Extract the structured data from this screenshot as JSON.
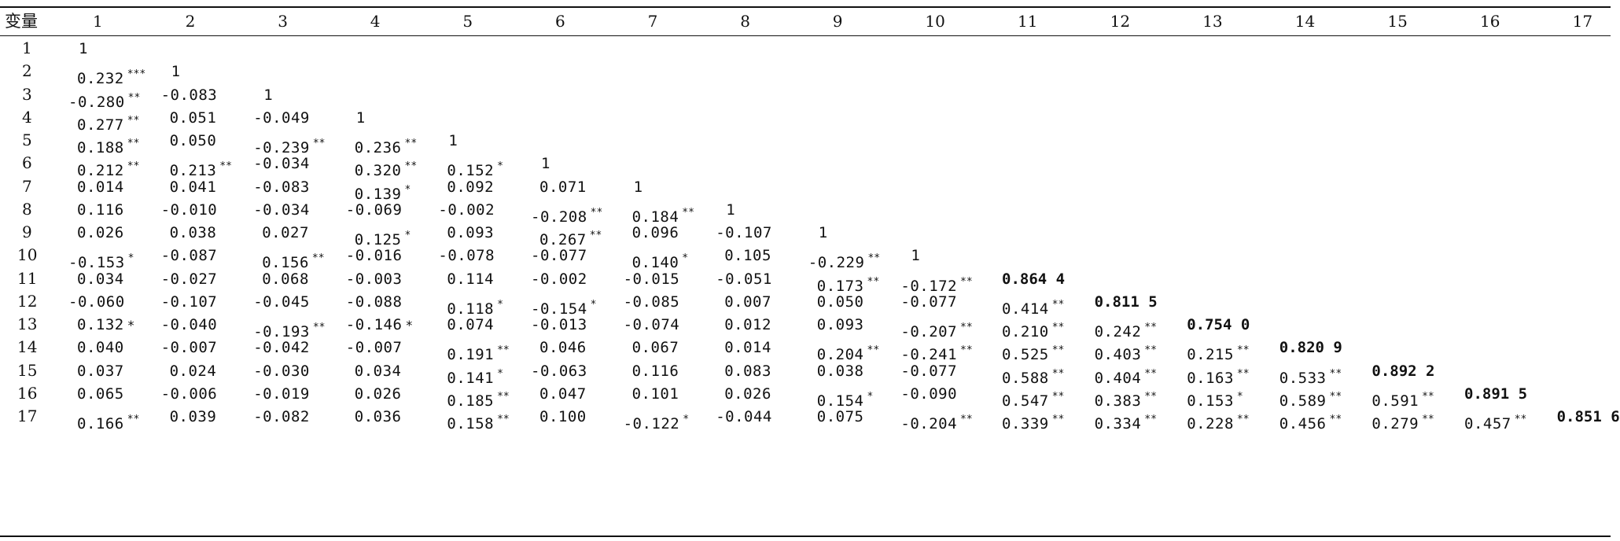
{
  "table": {
    "corner_label": "变量",
    "columns": [
      "1",
      "2",
      "3",
      "4",
      "5",
      "6",
      "7",
      "8",
      "9",
      "10",
      "11",
      "12",
      "13",
      "14",
      "15",
      "16",
      "17"
    ],
    "rows": [
      {
        "label": "1",
        "cells": [
          {
            "v": "1",
            "s": ""
          }
        ]
      },
      {
        "label": "2",
        "cells": [
          {
            "v": "0.232",
            "s": "***"
          },
          {
            "v": "1",
            "s": ""
          }
        ]
      },
      {
        "label": "3",
        "cells": [
          {
            "v": "-0.280",
            "s": "**"
          },
          {
            "v": "-0.083",
            "s": ""
          },
          {
            "v": "1",
            "s": ""
          }
        ]
      },
      {
        "label": "4",
        "cells": [
          {
            "v": "0.277",
            "s": "**"
          },
          {
            "v": "0.051",
            "s": ""
          },
          {
            "v": "-0.049",
            "s": ""
          },
          {
            "v": "1",
            "s": ""
          }
        ]
      },
      {
        "label": "5",
        "cells": [
          {
            "v": "0.188",
            "s": "**"
          },
          {
            "v": "0.050",
            "s": ""
          },
          {
            "v": "-0.239",
            "s": "**"
          },
          {
            "v": "0.236",
            "s": "**"
          },
          {
            "v": "1",
            "s": ""
          }
        ]
      },
      {
        "label": "6",
        "cells": [
          {
            "v": "0.212",
            "s": "**"
          },
          {
            "v": "0.213",
            "s": "**"
          },
          {
            "v": "-0.034",
            "s": ""
          },
          {
            "v": "0.320",
            "s": "**"
          },
          {
            "v": "0.152",
            "s": "*"
          },
          {
            "v": "1",
            "s": ""
          }
        ]
      },
      {
        "label": "7",
        "cells": [
          {
            "v": "0.014",
            "s": ""
          },
          {
            "v": "0.041",
            "s": ""
          },
          {
            "v": "-0.083",
            "s": ""
          },
          {
            "v": "0.139",
            "s": "*"
          },
          {
            "v": "0.092",
            "s": ""
          },
          {
            "v": "0.071",
            "s": ""
          },
          {
            "v": "1",
            "s": ""
          }
        ]
      },
      {
        "label": "8",
        "cells": [
          {
            "v": "0.116",
            "s": ""
          },
          {
            "v": "-0.010",
            "s": ""
          },
          {
            "v": "-0.034",
            "s": ""
          },
          {
            "v": "-0.069",
            "s": ""
          },
          {
            "v": "-0.002",
            "s": ""
          },
          {
            "v": "-0.208",
            "s": "**"
          },
          {
            "v": "0.184",
            "s": "**"
          },
          {
            "v": "1",
            "s": ""
          }
        ]
      },
      {
        "label": "9",
        "cells": [
          {
            "v": "0.026",
            "s": ""
          },
          {
            "v": "0.038",
            "s": ""
          },
          {
            "v": "0.027",
            "s": ""
          },
          {
            "v": "0.125",
            "s": "*"
          },
          {
            "v": "0.093",
            "s": ""
          },
          {
            "v": "0.267",
            "s": "**"
          },
          {
            "v": "0.096",
            "s": ""
          },
          {
            "v": "-0.107",
            "s": ""
          },
          {
            "v": "1",
            "s": ""
          }
        ]
      },
      {
        "label": "10",
        "cells": [
          {
            "v": "-0.153",
            "s": "*"
          },
          {
            "v": "-0.087",
            "s": ""
          },
          {
            "v": "0.156",
            "s": "**"
          },
          {
            "v": "-0.016",
            "s": ""
          },
          {
            "v": "-0.078",
            "s": ""
          },
          {
            "v": "-0.077",
            "s": ""
          },
          {
            "v": "0.140",
            "s": "*"
          },
          {
            "v": "0.105",
            "s": ""
          },
          {
            "v": "-0.229",
            "s": "**"
          },
          {
            "v": "1",
            "s": ""
          }
        ]
      },
      {
        "label": "11",
        "cells": [
          {
            "v": "0.034",
            "s": ""
          },
          {
            "v": "-0.027",
            "s": ""
          },
          {
            "v": "0.068",
            "s": ""
          },
          {
            "v": "-0.003",
            "s": ""
          },
          {
            "v": "0.114",
            "s": ""
          },
          {
            "v": "-0.002",
            "s": ""
          },
          {
            "v": "-0.015",
            "s": ""
          },
          {
            "v": "-0.051",
            "s": ""
          },
          {
            "v": "0.173",
            "s": "**"
          },
          {
            "v": "-0.172",
            "s": "**"
          },
          {
            "v": "0.864 4",
            "s": "",
            "b": true
          }
        ]
      },
      {
        "label": "12",
        "cells": [
          {
            "v": "-0.060",
            "s": ""
          },
          {
            "v": "-0.107",
            "s": ""
          },
          {
            "v": "-0.045",
            "s": ""
          },
          {
            "v": "-0.088",
            "s": ""
          },
          {
            "v": "0.118",
            "s": "*"
          },
          {
            "v": "-0.154",
            "s": "*"
          },
          {
            "v": "-0.085",
            "s": ""
          },
          {
            "v": "0.007",
            "s": ""
          },
          {
            "v": "0.050",
            "s": ""
          },
          {
            "v": "-0.077",
            "s": ""
          },
          {
            "v": "0.414",
            "s": "**"
          },
          {
            "v": "0.811 5",
            "s": "",
            "b": true
          }
        ]
      },
      {
        "label": "13",
        "cells": [
          {
            "v": "0.132",
            "s": "*",
            "inline": true
          },
          {
            "v": "-0.040",
            "s": ""
          },
          {
            "v": "-0.193",
            "s": "**"
          },
          {
            "v": "-0.146",
            "s": "*",
            "inline": true
          },
          {
            "v": "0.074",
            "s": ""
          },
          {
            "v": "-0.013",
            "s": ""
          },
          {
            "v": "-0.074",
            "s": ""
          },
          {
            "v": "0.012",
            "s": ""
          },
          {
            "v": "0.093",
            "s": ""
          },
          {
            "v": "-0.207",
            "s": "**"
          },
          {
            "v": "0.210",
            "s": "**"
          },
          {
            "v": "0.242",
            "s": "**"
          },
          {
            "v": "0.754 0",
            "s": "",
            "b": true
          }
        ]
      },
      {
        "label": "14",
        "cells": [
          {
            "v": "0.040",
            "s": ""
          },
          {
            "v": "-0.007",
            "s": ""
          },
          {
            "v": "-0.042",
            "s": ""
          },
          {
            "v": "-0.007",
            "s": ""
          },
          {
            "v": "0.191",
            "s": "**"
          },
          {
            "v": "0.046",
            "s": ""
          },
          {
            "v": "0.067",
            "s": ""
          },
          {
            "v": "0.014",
            "s": ""
          },
          {
            "v": "0.204",
            "s": "**"
          },
          {
            "v": "-0.241",
            "s": "**"
          },
          {
            "v": "0.525",
            "s": "**"
          },
          {
            "v": "0.403",
            "s": "**"
          },
          {
            "v": "0.215",
            "s": "**"
          },
          {
            "v": "0.820 9",
            "s": "",
            "b": true
          }
        ]
      },
      {
        "label": "15",
        "cells": [
          {
            "v": "0.037",
            "s": ""
          },
          {
            "v": "0.024",
            "s": ""
          },
          {
            "v": "-0.030",
            "s": ""
          },
          {
            "v": "0.034",
            "s": ""
          },
          {
            "v": "0.141",
            "s": "*"
          },
          {
            "v": "-0.063",
            "s": ""
          },
          {
            "v": "0.116",
            "s": ""
          },
          {
            "v": "0.083",
            "s": ""
          },
          {
            "v": "0.038",
            "s": ""
          },
          {
            "v": "-0.077",
            "s": ""
          },
          {
            "v": "0.588",
            "s": "**"
          },
          {
            "v": "0.404",
            "s": "**"
          },
          {
            "v": "0.163",
            "s": "**"
          },
          {
            "v": "0.533",
            "s": "**"
          },
          {
            "v": "0.892 2",
            "s": "",
            "b": true
          }
        ]
      },
      {
        "label": "16",
        "cells": [
          {
            "v": "0.065",
            "s": ""
          },
          {
            "v": "-0.006",
            "s": ""
          },
          {
            "v": "-0.019",
            "s": ""
          },
          {
            "v": "0.026",
            "s": ""
          },
          {
            "v": "0.185",
            "s": "**"
          },
          {
            "v": "0.047",
            "s": ""
          },
          {
            "v": "0.101",
            "s": ""
          },
          {
            "v": "0.026",
            "s": ""
          },
          {
            "v": "0.154",
            "s": "*"
          },
          {
            "v": "-0.090",
            "s": ""
          },
          {
            "v": "0.547",
            "s": "**"
          },
          {
            "v": "0.383",
            "s": "**"
          },
          {
            "v": "0.153",
            "s": "*"
          },
          {
            "v": "0.589",
            "s": "**"
          },
          {
            "v": "0.591",
            "s": "**"
          },
          {
            "v": "0.891 5",
            "s": "",
            "b": true
          }
        ]
      },
      {
        "label": "17",
        "cells": [
          {
            "v": "0.166",
            "s": "**"
          },
          {
            "v": "0.039",
            "s": ""
          },
          {
            "v": "-0.082",
            "s": ""
          },
          {
            "v": "0.036",
            "s": ""
          },
          {
            "v": "0.158",
            "s": "**"
          },
          {
            "v": "0.100",
            "s": ""
          },
          {
            "v": "-0.122",
            "s": "*"
          },
          {
            "v": "-0.044",
            "s": ""
          },
          {
            "v": "0.075",
            "s": ""
          },
          {
            "v": "-0.204",
            "s": "**"
          },
          {
            "v": "0.339",
            "s": "**"
          },
          {
            "v": "0.334",
            "s": "**"
          },
          {
            "v": "0.228",
            "s": "**"
          },
          {
            "v": "0.456",
            "s": "**"
          },
          {
            "v": "0.279",
            "s": "**"
          },
          {
            "v": "0.457",
            "s": "**"
          },
          {
            "v": "0.851 6",
            "s": "",
            "b": true
          }
        ]
      }
    ]
  }
}
